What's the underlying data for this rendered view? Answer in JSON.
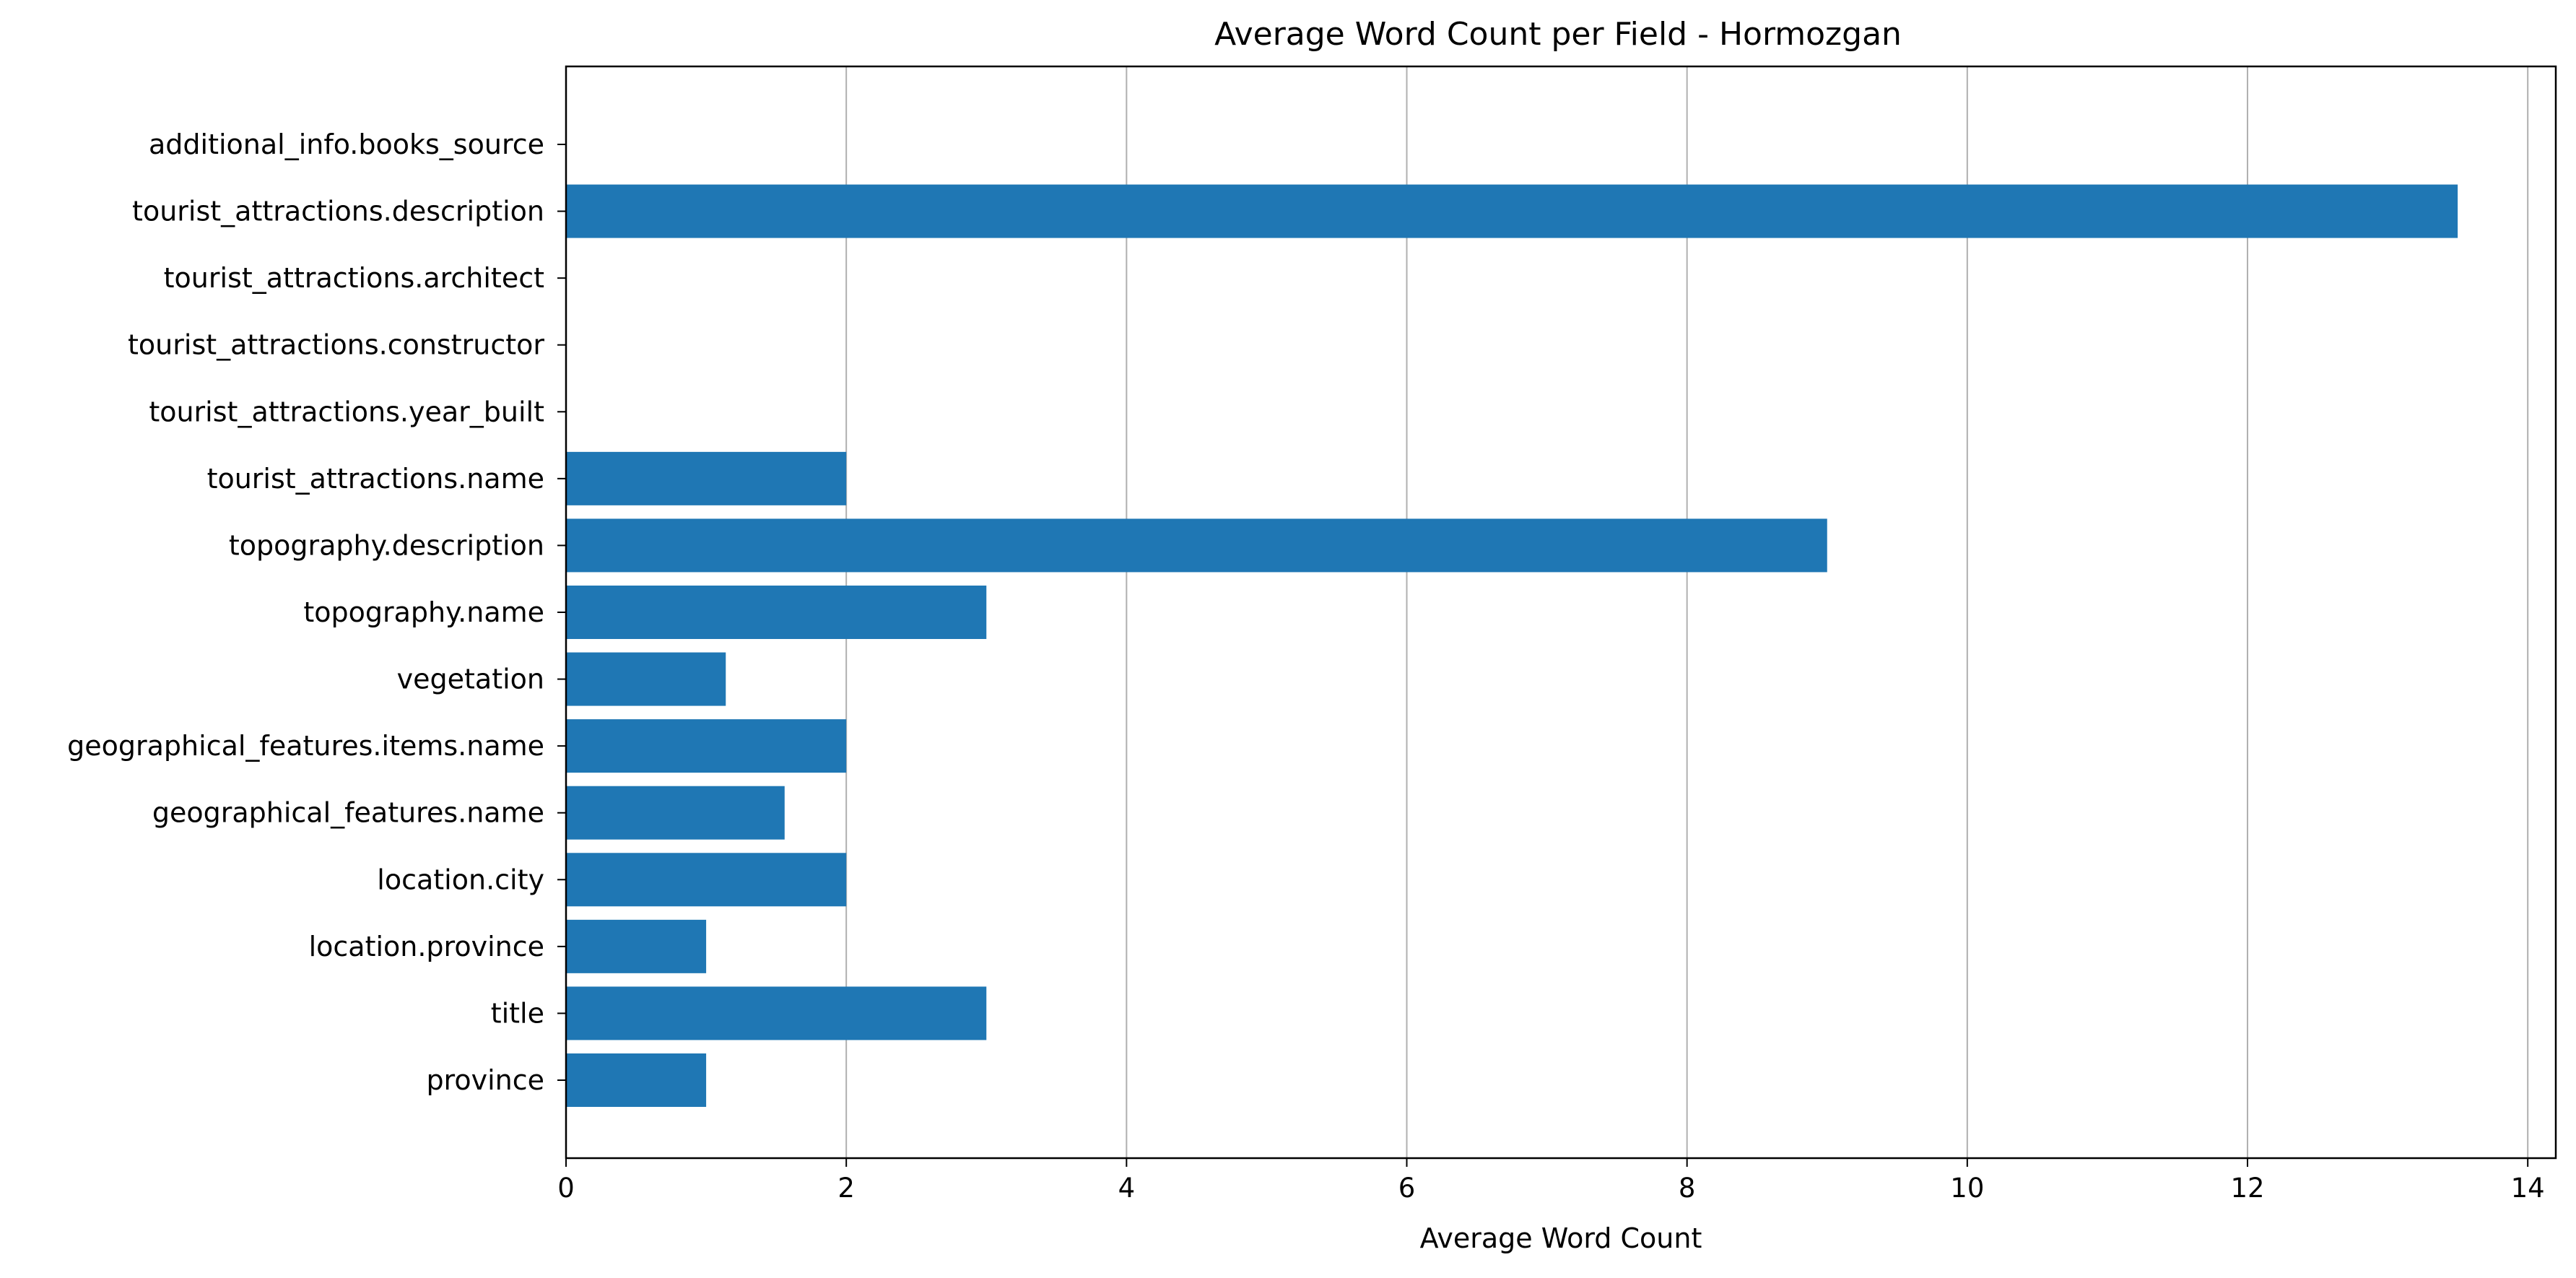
{
  "chart_data": {
    "type": "bar",
    "orientation": "horizontal",
    "title": "Average Word Count per Field - Hormozgan",
    "xlabel": "Average Word Count",
    "ylabel": "",
    "xlim": [
      0,
      14.2
    ],
    "xticks": [
      0,
      2,
      4,
      6,
      8,
      10,
      12,
      14
    ],
    "grid": "vertical lines at x ticks",
    "bar_color": "#1f77b4",
    "categories": [
      "province",
      "title",
      "location.province",
      "location.city",
      "geographical_features.name",
      "geographical_features.items.name",
      "vegetation",
      "topography.name",
      "topography.description",
      "tourist_attractions.name",
      "tourist_attractions.year_built",
      "tourist_attractions.constructor",
      "tourist_attractions.architect",
      "tourist_attractions.description",
      "additional_info.books_source"
    ],
    "values": [
      1,
      3,
      1,
      2,
      1.56,
      2,
      1.14,
      3,
      9,
      2,
      0,
      0,
      0,
      13.5,
      0
    ]
  }
}
